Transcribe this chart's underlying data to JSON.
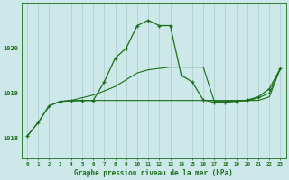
{
  "background_color": "#cce8e8",
  "grid_color": "#aacccc",
  "line_color": "#1a6e1a",
  "title": "Graphe pression niveau de la mer (hPa)",
  "ylabel_values": [
    1018,
    1019,
    1020
  ],
  "xlim": [
    -0.5,
    23.5
  ],
  "ylim": [
    1017.55,
    1021.0
  ],
  "series1_x": [
    0,
    1,
    2,
    3,
    4,
    5,
    6,
    7,
    8,
    9,
    10,
    11,
    12,
    13,
    14,
    15,
    16,
    17,
    18,
    19,
    20,
    21,
    22,
    23
  ],
  "series1_y": [
    1018.05,
    1018.35,
    1018.72,
    1018.82,
    1018.83,
    1018.84,
    1018.84,
    1019.25,
    1019.78,
    1020.0,
    1020.5,
    1020.62,
    1020.5,
    1020.5,
    1019.4,
    1019.25,
    1018.85,
    1018.8,
    1018.8,
    1018.82,
    1018.85,
    1018.92,
    1019.1,
    1019.55
  ],
  "series2_x": [
    0,
    1,
    2,
    3,
    4,
    5,
    6,
    7,
    8,
    9,
    10,
    11,
    12,
    13,
    14,
    15,
    16,
    17,
    18,
    19,
    20,
    21,
    22,
    23
  ],
  "series2_y": [
    1018.05,
    1018.35,
    1018.72,
    1018.82,
    1018.83,
    1018.84,
    1018.84,
    1018.84,
    1018.84,
    1018.84,
    1018.84,
    1018.84,
    1018.84,
    1018.84,
    1018.84,
    1018.84,
    1018.84,
    1018.84,
    1018.84,
    1018.84,
    1018.84,
    1018.84,
    1018.92,
    1019.55
  ],
  "series3_x": [
    3,
    4,
    5,
    6,
    7,
    8,
    9,
    10,
    11,
    12,
    13,
    14,
    15,
    16,
    17,
    18,
    19,
    20,
    21,
    22,
    23
  ],
  "series3_y": [
    1018.82,
    1018.84,
    1018.9,
    1018.96,
    1019.05,
    1019.15,
    1019.3,
    1019.45,
    1019.52,
    1019.55,
    1019.58,
    1019.58,
    1019.58,
    1019.58,
    1018.82,
    1018.82,
    1018.83,
    1018.83,
    1018.9,
    1019.0,
    1019.55
  ]
}
